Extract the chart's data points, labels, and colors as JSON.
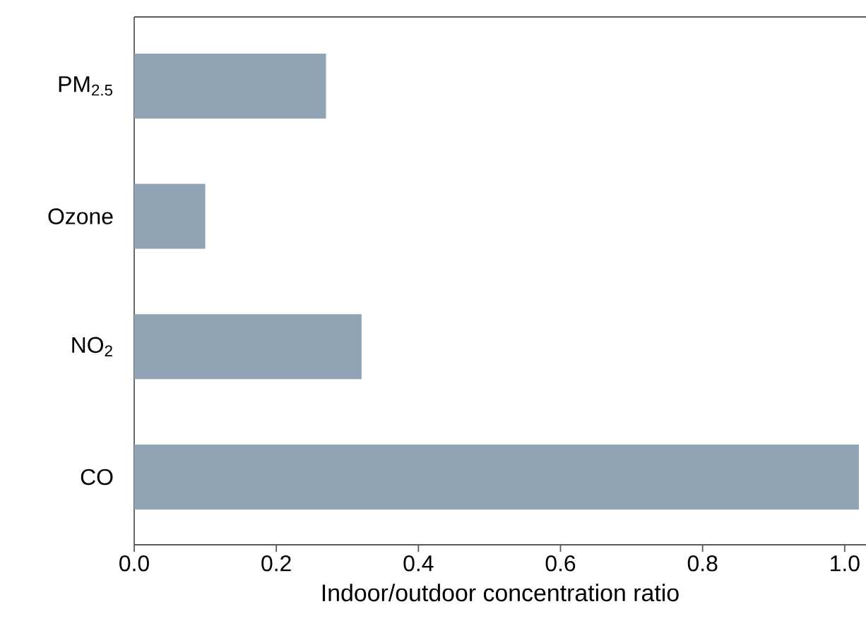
{
  "chart_data": {
    "type": "bar",
    "orientation": "horizontal",
    "xlabel": "Indoor/outdoor concentration ratio",
    "categories": [
      "PM$_{2.5}$",
      "Ozone",
      "NO$_{2}$",
      "CO"
    ],
    "values": [
      0.27,
      0.1,
      0.32,
      1.02
    ],
    "color": "#91a4b6",
    "xlim": [
      0,
      1.03
    ],
    "xticks": [
      {
        "value": 0,
        "label": "0.0"
      },
      {
        "value": 0.2,
        "label": "0.2"
      },
      {
        "value": 0.4,
        "label": "0.4"
      },
      {
        "value": 0.6,
        "label": "0.6"
      },
      {
        "value": 0.8,
        "label": "0.8"
      },
      {
        "value": 1.0,
        "label": "1.0"
      }
    ]
  }
}
